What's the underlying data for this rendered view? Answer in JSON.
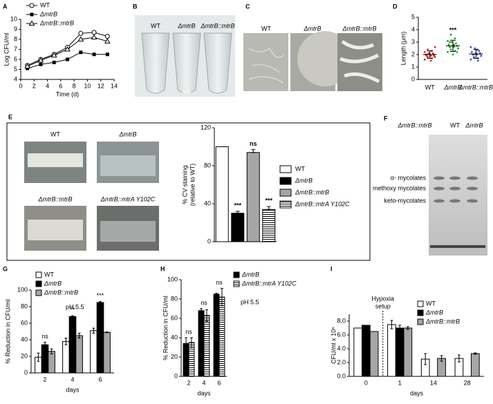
{
  "chart_data": [
    {
      "panel": "A",
      "type": "line",
      "x_label": "Time (d)",
      "y_label": "Log CFU/ml",
      "x": [
        1,
        3,
        5,
        7,
        9,
        11,
        13
      ],
      "xlim": [
        0,
        14
      ],
      "xticks": [
        0,
        2,
        4,
        6,
        8,
        10,
        12,
        14
      ],
      "ylim": [
        4,
        10
      ],
      "yticks": [
        4,
        5,
        6,
        7,
        8,
        9,
        10
      ],
      "series": [
        {
          "name": "WT",
          "marker": "circle",
          "color": "#000000",
          "values": [
            5.4,
            6.0,
            6.5,
            7.2,
            8.6,
            8.7,
            8.3
          ]
        },
        {
          "name": "ΔmtrB",
          "marker": "square",
          "color": "#000000",
          "values": [
            5.1,
            5.5,
            5.7,
            6.0,
            6.7,
            6.5,
            6.5
          ]
        },
        {
          "name": "ΔmtrB::mtrB",
          "marker": "triangle",
          "color": "#000000",
          "values": [
            5.3,
            5.9,
            6.4,
            7.0,
            8.0,
            8.2,
            7.8
          ]
        }
      ]
    },
    {
      "panel": "D",
      "type": "strip",
      "y_label": "Length (μm)",
      "categories": [
        "WT",
        "ΔmtrB",
        "ΔmtrB::mtrB"
      ],
      "ylim": [
        0,
        5
      ],
      "yticks": [
        0,
        1,
        2,
        3,
        4,
        5
      ],
      "groups": [
        {
          "color": "#d62728",
          "values": [
            1.6,
            1.7,
            1.8,
            1.8,
            1.9,
            1.9,
            2.0,
            2.0,
            2.0,
            2.1,
            2.1,
            2.2,
            2.3,
            2.4,
            2.6,
            1.5,
            2.0,
            1.9
          ]
        },
        {
          "color": "#2ca02c",
          "values": [
            2.2,
            2.3,
            2.4,
            2.5,
            2.6,
            2.6,
            2.7,
            2.7,
            2.8,
            2.9,
            3.0,
            3.1,
            3.3,
            3.6,
            2.5,
            2.8,
            3.0,
            2.2,
            2.0
          ]
        },
        {
          "color": "#3b4cc0",
          "values": [
            1.6,
            1.7,
            1.8,
            1.9,
            2.0,
            2.0,
            2.1,
            2.1,
            2.2,
            2.3,
            2.5,
            2.6,
            1.5,
            2.0,
            1.9,
            2.4
          ]
        }
      ],
      "means": [
        2.0,
        2.7,
        2.05
      ],
      "sd": [
        0.3,
        0.45,
        0.35
      ],
      "annotations": [
        null,
        "***",
        null
      ]
    },
    {
      "panel": "E",
      "type": "bar",
      "y_label": [
        "% CV staining",
        "(relative to WT)"
      ],
      "categories": [
        "WT",
        "ΔmtrB",
        "ΔmtrB::mtrB",
        "ΔmtrB::mtrA Y102C"
      ],
      "values": [
        100,
        30,
        94,
        34
      ],
      "errors": [
        null,
        2,
        3,
        3
      ],
      "colors": [
        "#ffffff",
        "#000000",
        "#a6a6a6",
        "#ffffff"
      ],
      "hatch": [
        false,
        false,
        false,
        true
      ],
      "ylim": [
        0,
        120
      ],
      "yticks": [
        0,
        40,
        80,
        120
      ],
      "annotations": [
        null,
        "***",
        "ns",
        "***"
      ],
      "image_labels": [
        "WT",
        "ΔmtrB",
        "ΔmtrB::mtrB",
        "ΔmtrB::mtrA Y102C"
      ]
    },
    {
      "panel": "G",
      "type": "grouped_bar",
      "y_label": "% Reduction in CFU/ml",
      "x_label": "days",
      "note": "pH 5.5",
      "categories": [
        "2",
        "4",
        "6"
      ],
      "ylim": [
        0,
        100
      ],
      "yticks": [
        0,
        20,
        40,
        60,
        80,
        100
      ],
      "annotations": [
        "ns",
        "**",
        "***"
      ],
      "series": [
        {
          "name": "WT",
          "color": "#ffffff",
          "hatch": false,
          "values": [
            19,
            38,
            51
          ],
          "errors": [
            5,
            4,
            3
          ]
        },
        {
          "name": "ΔmtrB",
          "color": "#000000",
          "hatch": false,
          "values": [
            34,
            68,
            85
          ],
          "errors": [
            3,
            1,
            1
          ]
        },
        {
          "name": "ΔmtrB::mtrB",
          "color": "#a6a6a6",
          "hatch": false,
          "values": [
            26,
            45,
            49
          ],
          "errors": [
            3,
            3,
            0.5
          ]
        }
      ]
    },
    {
      "panel": "H",
      "type": "grouped_bar",
      "y_label": "% Reduction in CFU/ml",
      "x_label": "days",
      "note": "pH 5.5",
      "categories": [
        "2",
        "4",
        "6"
      ],
      "ylim": [
        0,
        100
      ],
      "yticks": [
        0,
        20,
        40,
        60,
        80,
        100
      ],
      "annotations": [
        "ns",
        "ns",
        "ns"
      ],
      "series": [
        {
          "name": "ΔmtrB",
          "color": "#000000",
          "hatch": false,
          "values": [
            34,
            68,
            85
          ],
          "errors": [
            6,
            2,
            1
          ]
        },
        {
          "name": "ΔmtrB::mtrA Y102C",
          "color": "#ffffff",
          "hatch": true,
          "values": [
            35,
            63,
            82
          ],
          "errors": [
            5,
            6,
            9
          ]
        }
      ]
    },
    {
      "panel": "I",
      "type": "grouped_bar",
      "y_label": "CFU/ml x 10⁶",
      "x_label": "days",
      "divider_label": [
        "Hypoxia",
        "setup"
      ],
      "categories": [
        "0",
        "1",
        "14",
        "28"
      ],
      "ylim": [
        0,
        9
      ],
      "yticks": [
        {
          "value": 0,
          "label": "0.0"
        },
        {
          "value": 2,
          "label": "2.0"
        },
        {
          "value": 4,
          "label": "4.0"
        },
        {
          "value": 6,
          "label": "6.0"
        },
        {
          "value": 8,
          "label": "8.0"
        }
      ],
      "series": [
        {
          "name": "WT",
          "color": "#ffffff",
          "hatch": false,
          "values": [
            7.0,
            7.5,
            2.5,
            2.6
          ],
          "errors": [
            null,
            0.6,
            0.8,
            0.5
          ]
        },
        {
          "name": "ΔmtrB",
          "color": "#000000",
          "hatch": false,
          "values": [
            7.4,
            7.0,
            null,
            null
          ],
          "errors": [
            null,
            0.4,
            null,
            null
          ]
        },
        {
          "name": "ΔmtrB::mtrB",
          "color": "#a6a6a6",
          "hatch": false,
          "values": [
            6.5,
            7.0,
            2.6,
            3.3
          ],
          "errors": [
            null,
            0.2,
            0.4,
            0.1
          ]
        }
      ]
    }
  ],
  "photos": {
    "B": {
      "panel": "B",
      "labels": [
        "WT",
        "ΔmtrB",
        "ΔmtrB::mtrB"
      ]
    },
    "C": {
      "panel": "C",
      "labels": [
        "WT",
        "ΔmtrB",
        "ΔmtrB::mtrB"
      ]
    },
    "F": {
      "panel": "F",
      "lanes": [
        "ΔmtrB::mtrB",
        "WT",
        "ΔmtrB"
      ],
      "bands": [
        "α- mycolates",
        "methoxy mycolates",
        "keto-mycolates"
      ]
    }
  }
}
